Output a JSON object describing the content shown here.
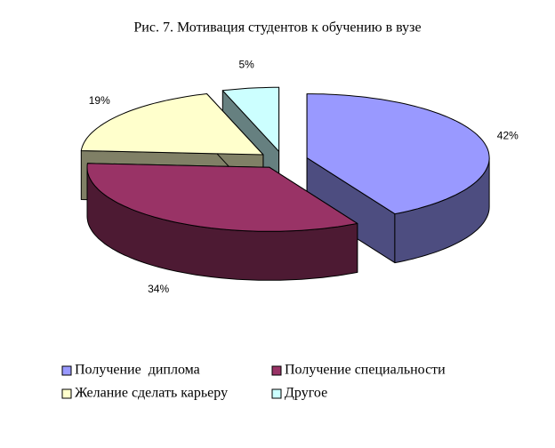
{
  "chart_data": {
    "type": "pie3d",
    "title": "Рис. 7. Мотивация студентов к обучению в вузе",
    "categories": [
      "Получение  диплома",
      "Получение специальности",
      "Желание сделать карьеру",
      "Другое"
    ],
    "values": [
      42,
      34,
      19,
      5
    ],
    "value_labels": [
      "42%",
      "34%",
      "19%",
      "5%"
    ],
    "colors": [
      "#9999ff",
      "#993366",
      "#ffffcc",
      "#ccffff"
    ],
    "legend": "bottom"
  }
}
